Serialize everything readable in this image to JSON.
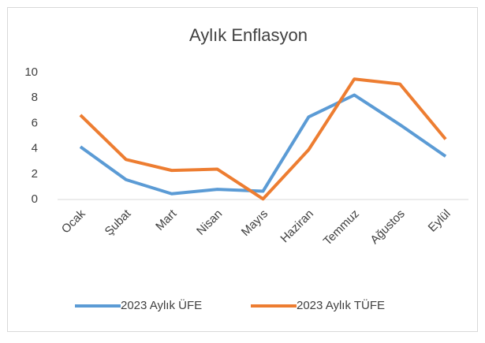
{
  "chart_data": {
    "type": "line",
    "title": "Aylık Enflasyon",
    "categories": [
      "Ocak",
      "Şubat",
      "Mart",
      "Nisan",
      "Mayıs",
      "Haziran",
      "Temmuz",
      "Ağustos",
      "Eylül"
    ],
    "series": [
      {
        "name": "2023 Aylık ÜFE",
        "color": "#5b9bd5",
        "values": [
          4.15,
          1.56,
          0.45,
          0.8,
          0.65,
          6.5,
          8.23,
          5.89,
          3.4
        ]
      },
      {
        "name": "2023 Aylık TÜFE",
        "color": "#ed7d31",
        "values": [
          6.65,
          3.15,
          2.29,
          2.39,
          0.04,
          3.92,
          9.49,
          9.09,
          4.75
        ]
      }
    ],
    "ylim": [
      0,
      10
    ],
    "yticks": [
      0,
      2,
      4,
      6,
      8,
      10
    ],
    "grid": false,
    "legend": "bottom"
  }
}
